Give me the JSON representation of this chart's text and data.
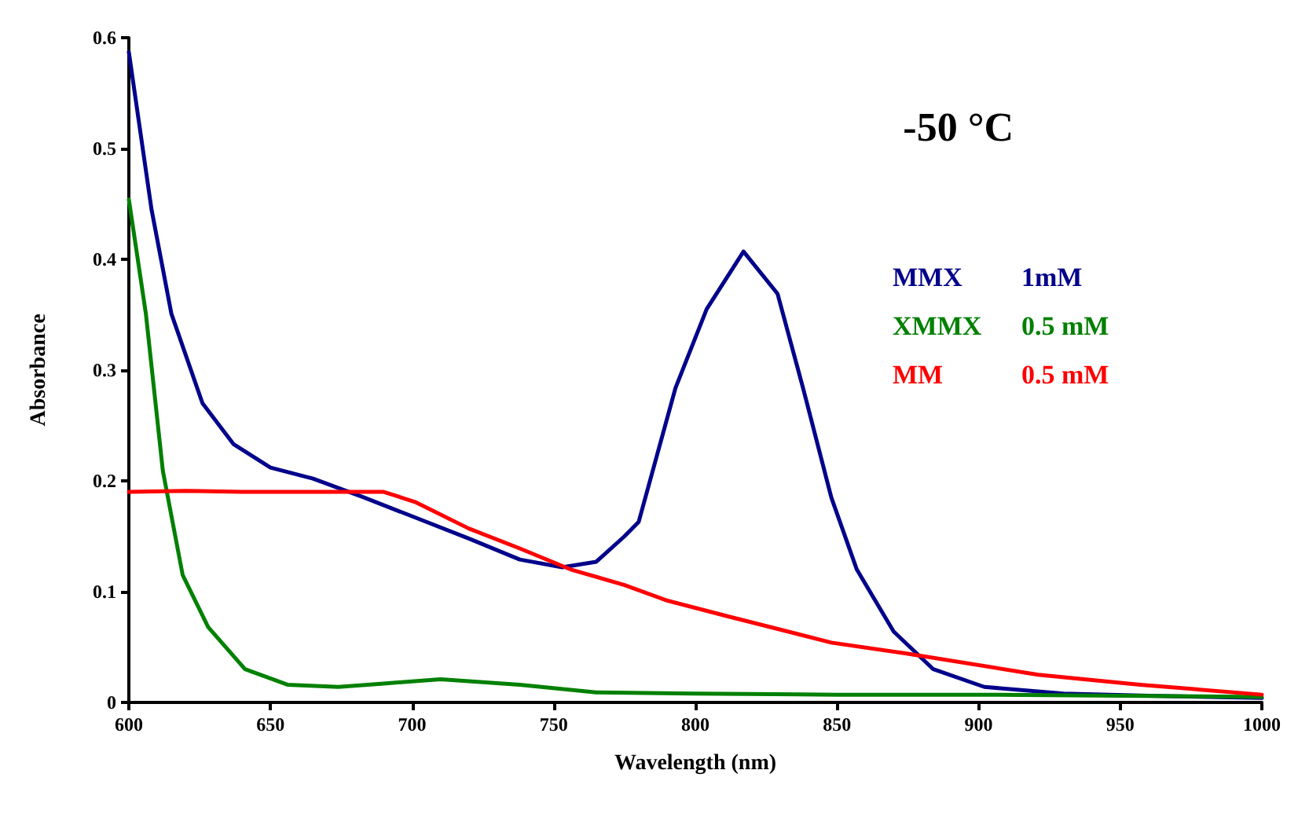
{
  "chart_data": {
    "type": "line",
    "xlabel": "Wavelength (nm)",
    "ylabel": "Absorbance",
    "annotations": [
      "-50 °C"
    ],
    "xlim": [
      600,
      1000
    ],
    "xticks": [
      600,
      650,
      700,
      750,
      800,
      850,
      900,
      950,
      1000
    ],
    "ylim": [
      0,
      0.6
    ],
    "yticks": [
      0,
      0.1,
      0.2,
      0.3,
      0.4,
      0.5,
      0.6
    ],
    "grid": false,
    "legend": false,
    "marker": "none",
    "line_style": "solid",
    "series": [
      {
        "name": "MMX 1mM",
        "color": "#00008b",
        "x": [
          600,
          608,
          615,
          626,
          637,
          650,
          665,
          683,
          701,
          720,
          738,
          753,
          765,
          775,
          780,
          793,
          804,
          817,
          829,
          838,
          848,
          857,
          870,
          884,
          902,
          930,
          960,
          1000
        ],
        "values": [
          0.587,
          0.445,
          0.351,
          0.27,
          0.233,
          0.212,
          0.202,
          0.185,
          0.167,
          0.148,
          0.129,
          0.122,
          0.127,
          0.15,
          0.163,
          0.284,
          0.355,
          0.407,
          0.369,
          0.284,
          0.185,
          0.12,
          0.064,
          0.03,
          0.014,
          0.008,
          0.006,
          0.004
        ]
      },
      {
        "name": "XMMX 0.5 mM",
        "color": "#008000",
        "x": [
          600,
          606,
          612,
          619,
          628,
          641,
          656,
          674,
          690,
          710,
          738,
          765,
          800,
          850,
          900,
          950,
          1000
        ],
        "values": [
          0.454,
          0.351,
          0.209,
          0.115,
          0.068,
          0.03,
          0.016,
          0.014,
          0.017,
          0.021,
          0.016,
          0.009,
          0.008,
          0.007,
          0.007,
          0.006,
          0.005
        ]
      },
      {
        "name": "MM 0.5 mM",
        "color": "#ff0000",
        "x": [
          600,
          620,
          640,
          660,
          680,
          690,
          701,
          720,
          738,
          756,
          775,
          790,
          811,
          848,
          875,
          921,
          957,
          1000
        ],
        "values": [
          0.19,
          0.191,
          0.19,
          0.19,
          0.19,
          0.19,
          0.181,
          0.157,
          0.139,
          0.12,
          0.106,
          0.092,
          0.078,
          0.054,
          0.044,
          0.025,
          0.016,
          0.007
        ]
      }
    ]
  }
}
